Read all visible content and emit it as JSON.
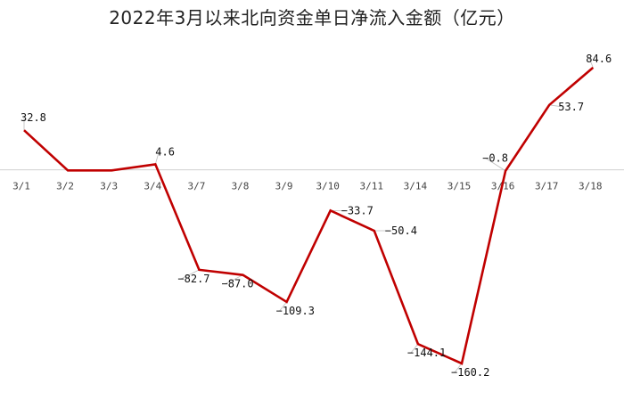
{
  "chart_data": {
    "type": "line",
    "title": "2022年3月以来北向资金单日净流入金额（亿元）",
    "categories": [
      "3/1",
      "3/2",
      "3/3",
      "3/4",
      "3/7",
      "3/8",
      "3/9",
      "3/10",
      "3/11",
      "3/14",
      "3/15",
      "3/16",
      "3/17",
      "3/18"
    ],
    "values": [
      32.8,
      -0.5,
      -0.5,
      4.6,
      -82.7,
      -87.0,
      -109.3,
      -33.7,
      -50.4,
      -144.1,
      -160.2,
      -0.8,
      53.7,
      84.6
    ],
    "data_labels": [
      "32.8",
      "",
      "",
      "4.6",
      "−82.7",
      "−87.0",
      "−109.3",
      "−33.7",
      "−50.4",
      "−144.1",
      "−160.2",
      "−0.8",
      "53.7",
      "84.6"
    ],
    "ylim": [
      -172,
      100
    ],
    "grid": false,
    "line_color": "#c00000"
  }
}
